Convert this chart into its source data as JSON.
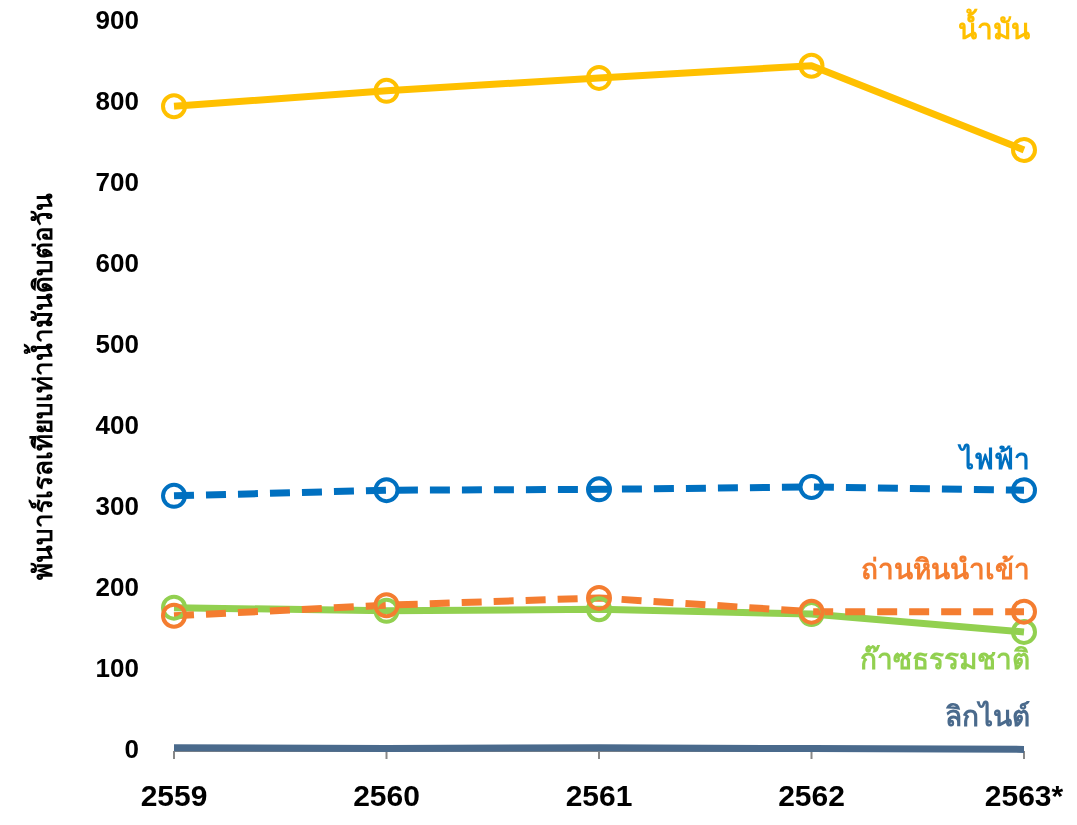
{
  "chart_data": {
    "type": "line",
    "ylabel": "พันบาร์เรลเทียบเท่าน้ำมันดิบต่อวัน",
    "categories": [
      "2559",
      "2560",
      "2561",
      "2562",
      "2563*"
    ],
    "ylim": [
      0,
      900
    ],
    "yticks": [
      0,
      100,
      200,
      300,
      400,
      500,
      600,
      700,
      800,
      900
    ],
    "grid": false,
    "series": [
      {
        "name": "น้ำมัน",
        "color": "#ffc000",
        "line_style": "solid",
        "marker": "circle",
        "values": [
          796,
          815,
          831,
          846,
          742
        ]
      },
      {
        "name": "ไฟฟ้า",
        "color": "#0070c0",
        "line_style": "dashed",
        "marker": "circle",
        "values": [
          315,
          322,
          323,
          326,
          322
        ]
      },
      {
        "name": "ถ่านหินนำเข้า",
        "color": "#f47d30",
        "line_style": "dashed",
        "marker": "circle",
        "values": [
          167,
          180,
          189,
          172,
          172
        ]
      },
      {
        "name": "ก๊าซธรรมชาติ",
        "color": "#92d050",
        "line_style": "solid",
        "marker": "circle",
        "values": [
          177,
          173,
          175,
          169,
          147
        ]
      },
      {
        "name": "ลิกไนต์",
        "color": "#4a6a8c",
        "line_style": "solid",
        "marker": "none",
        "values": [
          4,
          3,
          4,
          3,
          2
        ]
      }
    ]
  }
}
